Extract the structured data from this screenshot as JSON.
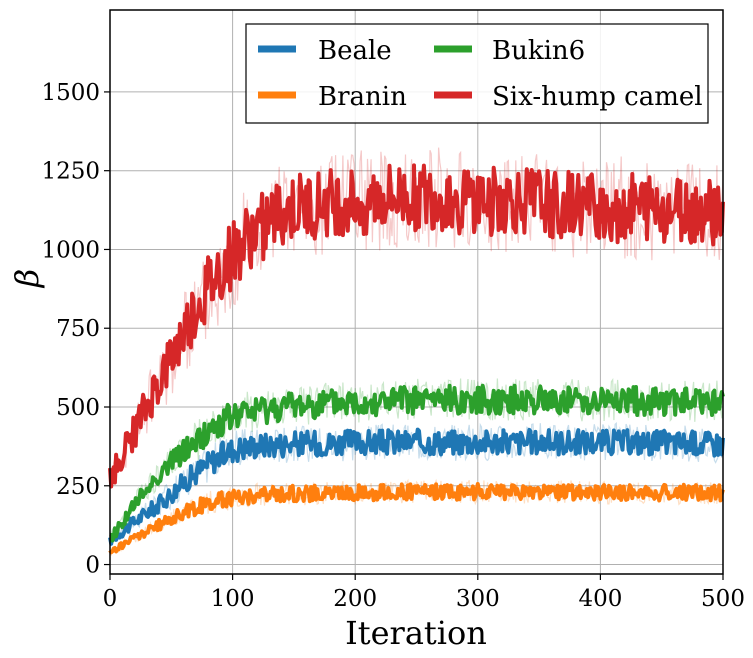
{
  "chart_data": {
    "type": "line",
    "title": "",
    "xlabel": "Iteration",
    "ylabel": "β",
    "xlim": [
      0,
      500
    ],
    "ylim": [
      -30,
      1760
    ],
    "xticks": [
      0,
      100,
      200,
      300,
      400,
      500
    ],
    "yticks": [
      0,
      250,
      500,
      750,
      1000,
      1250,
      1500
    ],
    "grid": true,
    "legend": {
      "placement": "top-right",
      "columns": 2
    },
    "series": [
      {
        "name": "Beale",
        "color": "#1f77b4",
        "x": [
          0,
          10,
          20,
          30,
          40,
          50,
          60,
          70,
          80,
          90,
          100,
          110,
          120,
          130,
          140,
          150,
          175,
          200,
          225,
          250,
          275,
          300,
          325,
          350,
          375,
          400,
          425,
          450,
          475,
          500
        ],
        "values": [
          75,
          105,
          135,
          165,
          190,
          225,
          260,
          290,
          320,
          345,
          365,
          372,
          378,
          380,
          382,
          384,
          385,
          387,
          388,
          389,
          388,
          389,
          388,
          389,
          388,
          389,
          388,
          387,
          385,
          383
        ]
      },
      {
        "name": "Branin",
        "color": "#ff7f0e",
        "x": [
          0,
          10,
          20,
          30,
          40,
          50,
          60,
          70,
          80,
          90,
          100,
          110,
          120,
          130,
          140,
          150,
          175,
          200,
          225,
          250,
          275,
          300,
          325,
          350,
          375,
          400,
          425,
          450,
          475,
          500
        ],
        "values": [
          38,
          62,
          85,
          105,
          125,
          145,
          165,
          180,
          195,
          205,
          212,
          216,
          220,
          222,
          224,
          225,
          226,
          228,
          229,
          230,
          230,
          231,
          230,
          230,
          230,
          229,
          229,
          228,
          228,
          227
        ]
      },
      {
        "name": "Bukin6",
        "color": "#2ca02c",
        "x": [
          0,
          10,
          20,
          30,
          40,
          50,
          60,
          70,
          80,
          90,
          100,
          110,
          120,
          130,
          140,
          150,
          175,
          200,
          225,
          250,
          275,
          300,
          325,
          350,
          375,
          400,
          425,
          450,
          475,
          500
        ],
        "values": [
          80,
          135,
          190,
          240,
          285,
          325,
          360,
          390,
          420,
          450,
          470,
          480,
          490,
          495,
          500,
          505,
          510,
          515,
          520,
          522,
          523,
          524,
          523,
          522,
          521,
          520,
          519,
          518,
          517,
          516
        ]
      },
      {
        "name": "Six-hump camel",
        "color": "#d62728",
        "x": [
          0,
          10,
          20,
          30,
          40,
          50,
          60,
          70,
          80,
          90,
          100,
          110,
          120,
          130,
          140,
          150,
          175,
          200,
          225,
          250,
          275,
          300,
          325,
          350,
          375,
          400,
          425,
          450,
          475,
          500
        ],
        "values": [
          270,
          350,
          420,
          500,
          580,
          650,
          730,
          810,
          870,
          930,
          980,
          1020,
          1060,
          1090,
          1110,
          1125,
          1140,
          1150,
          1160,
          1165,
          1160,
          1155,
          1150,
          1145,
          1140,
          1135,
          1130,
          1125,
          1120,
          1115
        ]
      }
    ]
  }
}
